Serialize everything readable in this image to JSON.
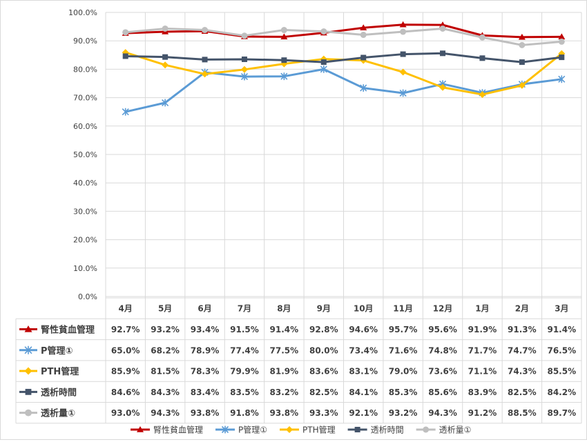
{
  "chart_data": {
    "type": "line",
    "categories": [
      "4月",
      "5月",
      "6月",
      "7月",
      "8月",
      "9月",
      "10月",
      "11月",
      "12月",
      "1月",
      "2月",
      "3月"
    ],
    "ylim": [
      0,
      100
    ],
    "y_ticks": [
      "0.0%",
      "10.0%",
      "20.0%",
      "30.0%",
      "40.0%",
      "50.0%",
      "60.0%",
      "70.0%",
      "80.0%",
      "90.0%",
      "100.0%"
    ],
    "grid": true,
    "legend": "bottom",
    "data_table": true,
    "series": [
      {
        "name": "腎性貧血管理",
        "color": "#c00000",
        "marker": "triangle",
        "values": [
          92.7,
          93.2,
          93.4,
          91.5,
          91.4,
          92.8,
          94.6,
          95.7,
          95.6,
          91.9,
          91.3,
          91.4
        ],
        "labels": [
          "92.7%",
          "93.2%",
          "93.4%",
          "91.5%",
          "91.4%",
          "92.8%",
          "94.6%",
          "95.7%",
          "95.6%",
          "91.9%",
          "91.3%",
          "91.4%"
        ]
      },
      {
        "name": "P管理①",
        "color": "#5b9bd5",
        "marker": "asterisk",
        "values": [
          65.0,
          68.2,
          78.9,
          77.4,
          77.5,
          80.0,
          73.4,
          71.6,
          74.8,
          71.7,
          74.7,
          76.5
        ],
        "labels": [
          "65.0%",
          "68.2%",
          "78.9%",
          "77.4%",
          "77.5%",
          "80.0%",
          "73.4%",
          "71.6%",
          "74.8%",
          "71.7%",
          "74.7%",
          "76.5%"
        ]
      },
      {
        "name": "PTH管理",
        "color": "#ffc000",
        "marker": "diamond",
        "values": [
          85.9,
          81.5,
          78.3,
          79.9,
          81.9,
          83.6,
          83.1,
          79.0,
          73.6,
          71.1,
          74.3,
          85.5
        ],
        "labels": [
          "85.9%",
          "81.5%",
          "78.3%",
          "79.9%",
          "81.9%",
          "83.6%",
          "83.1%",
          "79.0%",
          "73.6%",
          "71.1%",
          "74.3%",
          "85.5%"
        ]
      },
      {
        "name": "透析時間",
        "color": "#44546a",
        "marker": "square",
        "values": [
          84.6,
          84.3,
          83.4,
          83.5,
          83.2,
          82.5,
          84.1,
          85.3,
          85.6,
          83.9,
          82.5,
          84.2
        ],
        "labels": [
          "84.6%",
          "84.3%",
          "83.4%",
          "83.5%",
          "83.2%",
          "82.5%",
          "84.1%",
          "85.3%",
          "85.6%",
          "83.9%",
          "82.5%",
          "84.2%"
        ]
      },
      {
        "name": "透析量①",
        "color": "#bfbfbf",
        "marker": "circle",
        "values": [
          93.0,
          94.3,
          93.8,
          91.8,
          93.8,
          93.3,
          92.1,
          93.2,
          94.3,
          91.2,
          88.5,
          89.7
        ],
        "labels": [
          "93.0%",
          "94.3%",
          "93.8%",
          "91.8%",
          "93.8%",
          "93.3%",
          "92.1%",
          "93.2%",
          "94.3%",
          "91.2%",
          "88.5%",
          "89.7%"
        ]
      }
    ]
  }
}
